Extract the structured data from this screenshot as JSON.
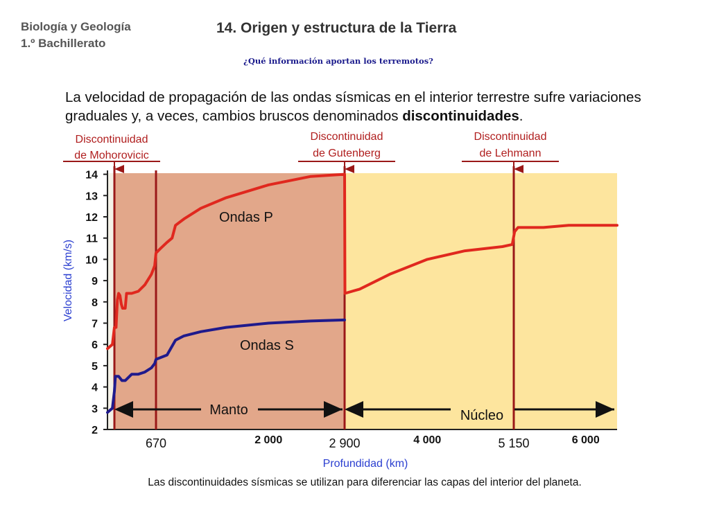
{
  "header": {
    "course_line1": "Biología y Geología",
    "course_line2": "1.º Bachillerato",
    "title": "14. Origen y estructura de la Tierra",
    "subtitle": "¿Qué información aportan los terremotos?"
  },
  "intro": {
    "text_before": "La velocidad de propagación de las ondas sísmicas en el interior terrestre sufre variaciones graduales y, a veces, cambios bruscos denominados ",
    "bold": "discontinuidades",
    "text_after": "."
  },
  "caption": "Las discontinuidades sísmicas se utilizan para diferenciar las capas del interior del planeta.",
  "colors": {
    "mantle": "#e2a78a",
    "core": "#fde59e",
    "crust": "#f4f1e6",
    "p_wave": "#e0281e",
    "s_wave": "#1f1a8c",
    "discontinuity": "#9a1818",
    "label_red": "#b01e1e",
    "axis_label_blue": "#2b3fd0"
  },
  "chart_data": {
    "type": "line",
    "xlabel": "Profundidad (km)",
    "ylabel": "Velocidad (km/s)",
    "xlim": [
      0,
      6371
    ],
    "ylim": [
      2,
      14
    ],
    "yticks": [
      2,
      3,
      4,
      5,
      6,
      7,
      8,
      9,
      10,
      11,
      12,
      13,
      14
    ],
    "xticks": [
      {
        "value": 670,
        "label": "670",
        "bold": false
      },
      {
        "value": 2000,
        "label": "2 000",
        "bold": true
      },
      {
        "value": 2900,
        "label": "2 900",
        "bold": false
      },
      {
        "value": 4000,
        "label": "4 000",
        "bold": true
      },
      {
        "value": 5150,
        "label": "5 150",
        "bold": false
      },
      {
        "value": 6000,
        "label": "6 000",
        "bold": true
      }
    ],
    "discontinuities": [
      {
        "name_line1": "Discontinuidad",
        "name_line2": "de Mohorovicic",
        "depth": 35
      },
      {
        "name_line1": "Discontinuidad",
        "name_line2": "de Gutenberg",
        "depth": 2900
      },
      {
        "name_line1": "Discontinuidad",
        "name_line2": "de Lehmann",
        "depth": 5150
      }
    ],
    "mantle_670_line": 670,
    "regions": [
      {
        "name": "Manto",
        "from": 35,
        "to": 2900
      },
      {
        "name": "Núcleo",
        "from": 2900,
        "to": 6371
      }
    ],
    "series": [
      {
        "name": "Ondas P",
        "points": [
          [
            0,
            5.8
          ],
          [
            25,
            6.0
          ],
          [
            35,
            6.8
          ],
          [
            60,
            6.8
          ],
          [
            80,
            8.1
          ],
          [
            100,
            8.4
          ],
          [
            120,
            8.3
          ],
          [
            140,
            7.9
          ],
          [
            160,
            7.7
          ],
          [
            200,
            7.7
          ],
          [
            220,
            8.4
          ],
          [
            300,
            8.4
          ],
          [
            400,
            8.5
          ],
          [
            500,
            8.8
          ],
          [
            600,
            9.3
          ],
          [
            650,
            9.7
          ],
          [
            670,
            10.3
          ],
          [
            720,
            10.5
          ],
          [
            800,
            10.8
          ],
          [
            860,
            11.0
          ],
          [
            900,
            11.6
          ],
          [
            1000,
            11.9
          ],
          [
            1200,
            12.4
          ],
          [
            1500,
            12.9
          ],
          [
            2000,
            13.5
          ],
          [
            2500,
            13.9
          ],
          [
            2900,
            14.0
          ],
          [
            2905,
            8.4
          ],
          [
            3100,
            8.6
          ],
          [
            3500,
            9.3
          ],
          [
            4000,
            10.0
          ],
          [
            4500,
            10.4
          ],
          [
            5000,
            10.6
          ],
          [
            5130,
            10.7
          ],
          [
            5160,
            11.3
          ],
          [
            5200,
            11.5
          ],
          [
            5500,
            11.5
          ],
          [
            5800,
            11.6
          ],
          [
            6371,
            11.6
          ]
        ]
      },
      {
        "name": "Ondas S",
        "points": [
          [
            0,
            2.8
          ],
          [
            25,
            3.0
          ],
          [
            35,
            3.8
          ],
          [
            50,
            4.5
          ],
          [
            100,
            4.5
          ],
          [
            150,
            4.3
          ],
          [
            200,
            4.3
          ],
          [
            300,
            4.6
          ],
          [
            400,
            4.6
          ],
          [
            500,
            4.7
          ],
          [
            600,
            4.9
          ],
          [
            650,
            5.1
          ],
          [
            670,
            5.3
          ],
          [
            800,
            5.5
          ],
          [
            900,
            6.2
          ],
          [
            1000,
            6.4
          ],
          [
            1200,
            6.6
          ],
          [
            1500,
            6.8
          ],
          [
            2000,
            7.0
          ],
          [
            2500,
            7.1
          ],
          [
            2900,
            7.15
          ]
        ]
      }
    ]
  }
}
